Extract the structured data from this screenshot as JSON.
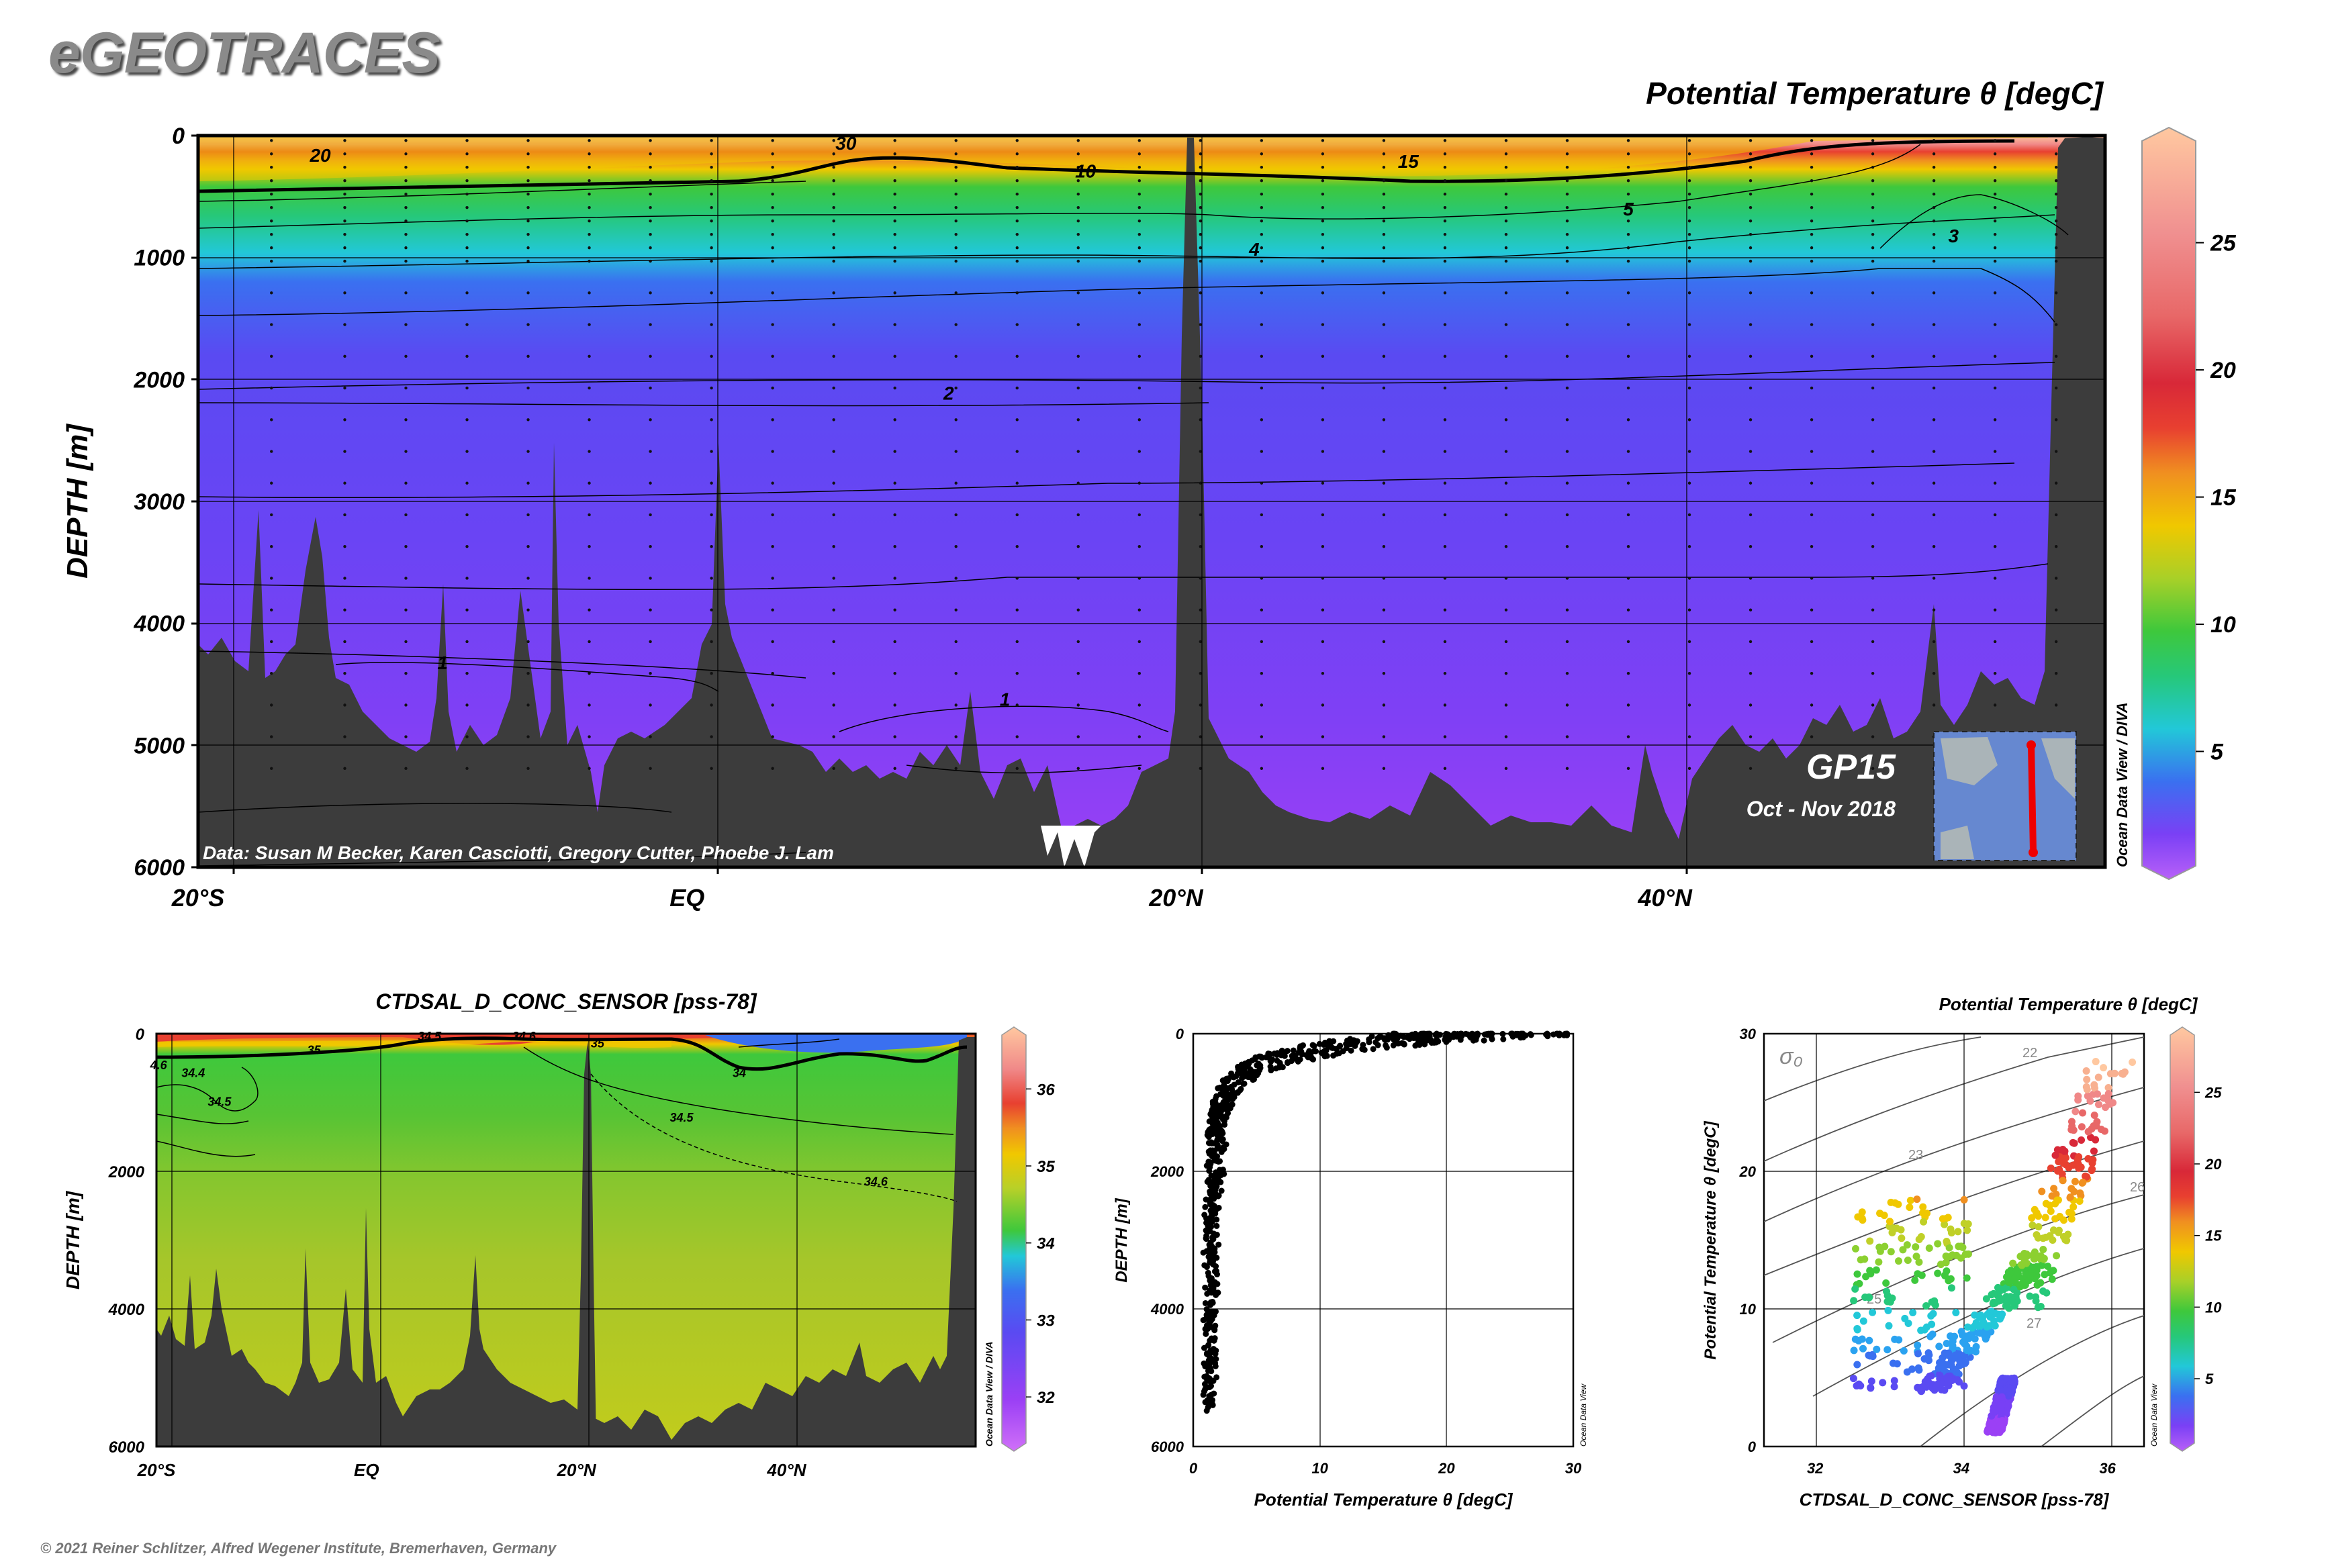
{
  "header": {
    "logo": "eGEOTRACES",
    "copyright": "© 2021 Reiner Schlitzer, Alfred Wegener Institute, Bremerhaven, Germany"
  },
  "colors": {
    "scale": [
      "#9b40f5",
      "#7840f5",
      "#5a4af2",
      "#3a70f0",
      "#2aa2f0",
      "#22c8d8",
      "#26c87a",
      "#3ec83c",
      "#8cd030",
      "#c0d028",
      "#f0c800",
      "#f09020",
      "#e84030",
      "#d82838",
      "#e86868",
      "#f08888",
      "#f8b090",
      "#ffc8a0"
    ],
    "land": "#3c3c3c",
    "gridline": "#000000"
  },
  "chart_data": [
    {
      "id": "section-theta",
      "type": "heatmap",
      "title": "Potential Temperature θ [degC]",
      "ylabel": "DEPTH [m]",
      "ylim": [
        6000,
        0
      ],
      "xlim": [
        -20,
        58
      ],
      "x_ticks": [
        {
          "value": -20,
          "label": "20°S"
        },
        {
          "value": 0,
          "label": "EQ"
        },
        {
          "value": 20,
          "label": "20°N"
        },
        {
          "value": 40,
          "label": "40°N"
        }
      ],
      "y_ticks": [
        0,
        1000,
        2000,
        3000,
        4000,
        5000,
        6000
      ],
      "colorbar": {
        "ticks": [
          5,
          10,
          15,
          20,
          25
        ],
        "range": [
          0.5,
          29
        ]
      },
      "contour_labels": [
        {
          "text": "20",
          "lat": -15,
          "depth": 160
        },
        {
          "text": "30",
          "lat": 6.5,
          "depth": 60
        },
        {
          "text": "10",
          "lat": 16.3,
          "depth": 290
        },
        {
          "text": "15",
          "lat": 29.5,
          "depth": 210
        },
        {
          "text": "5",
          "lat": 38.5,
          "depth": 600
        },
        {
          "text": "4",
          "lat": 23.2,
          "depth": 930
        },
        {
          "text": "3",
          "lat": 51.8,
          "depth": 820
        },
        {
          "text": "2",
          "lat": 10.7,
          "depth": 2110
        },
        {
          "text": "1",
          "lat": -10,
          "depth": 4320
        },
        {
          "text": "1",
          "lat": 13,
          "depth": 4620
        }
      ],
      "source_note": "Data: Susan M Becker, Karen Casciotti, Gregory Cutter, Phoebe J. Lam",
      "inset_title": "GP15",
      "inset_subtitle": "Oct - Nov 2018",
      "side_note": "Ocean Data View / DIVA"
    },
    {
      "id": "section-salinity",
      "type": "heatmap",
      "title": "CTDSAL_D_CONC_SENSOR [pss-78]",
      "ylabel": "DEPTH [m]",
      "ylim": [
        6000,
        0
      ],
      "xlim": [
        -20,
        58
      ],
      "x_ticks": [
        {
          "value": -20,
          "label": "20°S"
        },
        {
          "value": 0,
          "label": "EQ"
        },
        {
          "value": 20,
          "label": "20°N"
        },
        {
          "value": 40,
          "label": "40°N"
        }
      ],
      "y_ticks": [
        0,
        2000,
        4000,
        6000
      ],
      "colorbar": {
        "ticks": [
          32,
          33,
          34,
          35,
          36
        ],
        "range": [
          31.4,
          36.7
        ]
      },
      "contour_labels": [
        {
          "text": "35",
          "lat": -5,
          "depth": 240
        },
        {
          "text": "34.5",
          "lat": 6,
          "depth": 40
        },
        {
          "text": "34.6",
          "lat": 15,
          "depth": 40
        },
        {
          "text": "35",
          "lat": 22,
          "depth": 140
        },
        {
          "text": "34",
          "lat": 35.5,
          "depth": 570
        },
        {
          "text": "34.5",
          "lat": 30,
          "depth": 1220
        },
        {
          "text": "34.6",
          "lat": 48.5,
          "depth": 2150
        },
        {
          "text": "34.4",
          "lat": -16.5,
          "depth": 570
        },
        {
          "text": "34.5",
          "lat": -14,
          "depth": 990
        },
        {
          "text": "4.6",
          "lat": -19.8,
          "depth": 460
        }
      ],
      "side_note": "Ocean Data View / DIVA"
    },
    {
      "id": "profile-theta",
      "type": "scatter",
      "xlabel": "Potential Temperature θ [degC]",
      "ylabel": "DEPTH [m]",
      "xlim": [
        0,
        30
      ],
      "ylim": [
        6000,
        0
      ],
      "x_ticks": [
        0,
        10,
        20,
        30
      ],
      "y_ticks": [
        0,
        2000,
        4000,
        6000
      ],
      "side_note": "Ocean Data View"
    },
    {
      "id": "ts-diagram",
      "type": "scatter",
      "title": "Potential Temperature θ [degC]",
      "xlabel": "CTDSAL_D_CONC_SENSOR [pss-78]",
      "ylabel": "Potential Temperature θ [degC]",
      "xlim": [
        31.3,
        36.5
      ],
      "ylim": [
        0,
        30
      ],
      "x_ticks": [
        32,
        34,
        36
      ],
      "y_ticks": [
        0,
        10,
        20,
        30
      ],
      "colorbar": {
        "ticks": [
          5,
          10,
          15,
          20,
          25
        ],
        "range": [
          0.5,
          29
        ]
      },
      "isopycnal_labels": [
        "22",
        "23",
        "25",
        "26",
        "27"
      ],
      "sigma_label": "σ₀",
      "side_note": "Ocean Data View"
    }
  ]
}
